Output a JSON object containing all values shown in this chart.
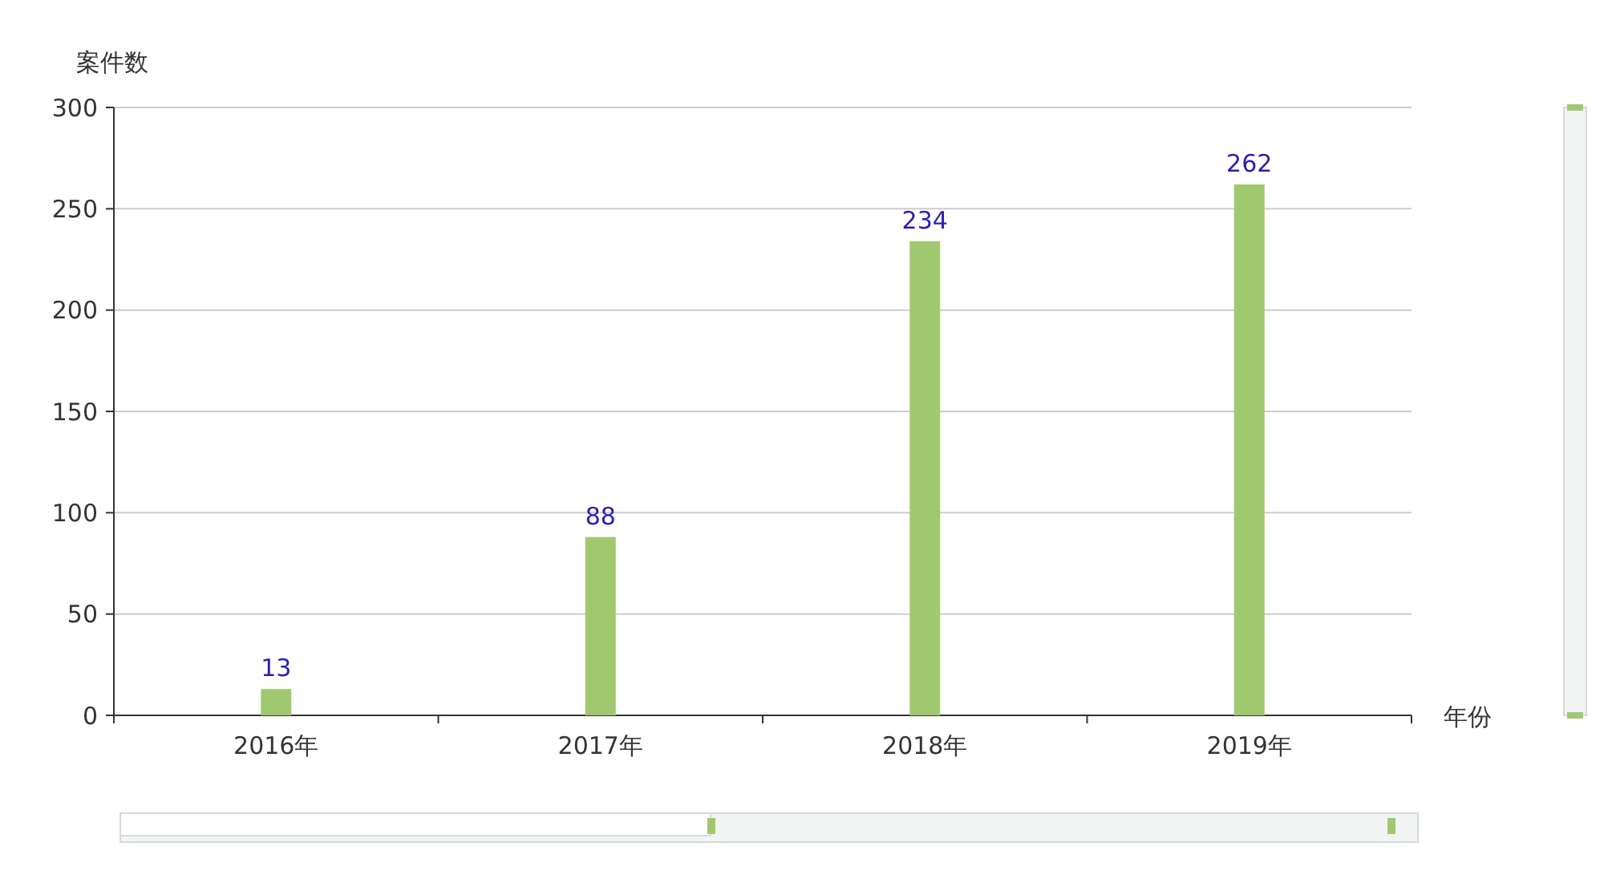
{
  "chart_data": {
    "type": "bar",
    "xlabel": "年份",
    "ylabel": "案件数",
    "categories": [
      "2016年",
      "2017年",
      "2018年",
      "2019年"
    ],
    "values": [
      13,
      88,
      234,
      262
    ],
    "color": "#a0c96f",
    "ylim": [
      0,
      300
    ],
    "yticks": [
      0,
      50,
      100,
      150,
      200,
      250,
      300
    ],
    "grid": "y",
    "data_labels": true
  }
}
